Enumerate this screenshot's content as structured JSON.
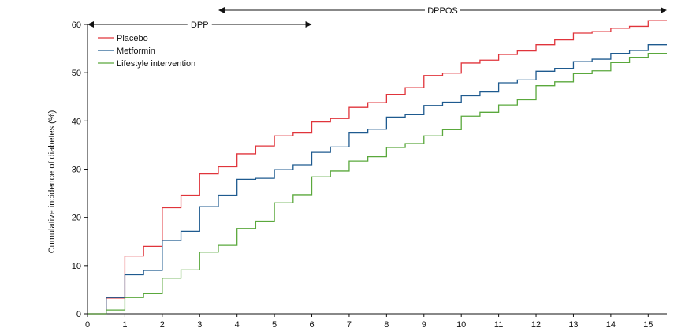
{
  "chart_data": {
    "type": "line",
    "step": true,
    "ylabel": "Cumulative incidence of diabetes (%)",
    "xlabel": "",
    "xlim": [
      0,
      15.5
    ],
    "ylim": [
      0,
      60
    ],
    "x_ticks": [
      0,
      1,
      2,
      3,
      4,
      5,
      6,
      7,
      8,
      9,
      10,
      11,
      12,
      13,
      14,
      15
    ],
    "y_ticks": [
      0,
      10,
      20,
      30,
      40,
      50,
      60
    ],
    "grid": false,
    "legend_position": "top-left",
    "periods": [
      {
        "label": "DPP",
        "start": 0,
        "end": 6
      },
      {
        "label": "DPPOS",
        "start": 3.5,
        "end": 15.5
      }
    ],
    "series": [
      {
        "name": "Placebo",
        "color": "#e0343b",
        "x": [
          0,
          0.5,
          1,
          1.5,
          2,
          2.5,
          3,
          3.5,
          4,
          4.5,
          5,
          5.5,
          6,
          6.5,
          7,
          7.5,
          8,
          8.5,
          9,
          9.5,
          10,
          10.5,
          11,
          11.5,
          12,
          12.5,
          13,
          13.5,
          14,
          14.5,
          15,
          15.5
        ],
        "y": [
          0,
          3.3,
          12,
          14,
          22,
          24.6,
          29,
          30.5,
          33.2,
          34.8,
          36.9,
          37.5,
          39.8,
          40.5,
          42.8,
          43.8,
          45.5,
          46.9,
          49.4,
          49.9,
          52,
          52.6,
          53.8,
          54.5,
          55.8,
          56.8,
          58.2,
          58.5,
          59.2,
          59.6,
          60.8,
          60.8
        ]
      },
      {
        "name": "Metformin",
        "color": "#1e5a8f",
        "x": [
          0,
          0.5,
          1,
          1.5,
          2,
          2.5,
          3,
          3.5,
          4,
          4.5,
          5,
          5.5,
          6,
          6.5,
          7,
          7.5,
          8,
          8.5,
          9,
          9.5,
          10,
          10.5,
          11,
          11.5,
          12,
          12.5,
          13,
          13.5,
          14,
          14.5,
          15,
          15.5
        ],
        "y": [
          0,
          3.4,
          8.1,
          9,
          15.2,
          17.1,
          22.2,
          24.6,
          27.9,
          28.1,
          29.9,
          30.9,
          33.5,
          34.6,
          37.5,
          38.3,
          40.8,
          41.3,
          43.2,
          43.9,
          45.2,
          46,
          47.9,
          48.5,
          50.3,
          50.9,
          52.3,
          52.8,
          54,
          54.6,
          55.8,
          55.8
        ]
      },
      {
        "name": "Lifestyle intervention",
        "color": "#5aa83c",
        "x": [
          0,
          0.5,
          1,
          1.5,
          2,
          2.5,
          3,
          3.5,
          4,
          4.5,
          5,
          5.5,
          6,
          6.5,
          7,
          7.5,
          8,
          8.5,
          9,
          9.5,
          10,
          10.5,
          11,
          11.5,
          12,
          12.5,
          13,
          13.5,
          14,
          14.5,
          15,
          15.5
        ],
        "y": [
          0,
          0.8,
          3.4,
          4.2,
          7.4,
          9.1,
          12.8,
          14.2,
          17.7,
          19.2,
          23,
          24.7,
          28.4,
          29.6,
          31.7,
          32.6,
          34.5,
          35.3,
          36.9,
          38.2,
          41,
          41.8,
          43.3,
          44.4,
          47.3,
          48.1,
          49.8,
          50.4,
          52.1,
          53.2,
          54,
          54
        ]
      }
    ]
  }
}
